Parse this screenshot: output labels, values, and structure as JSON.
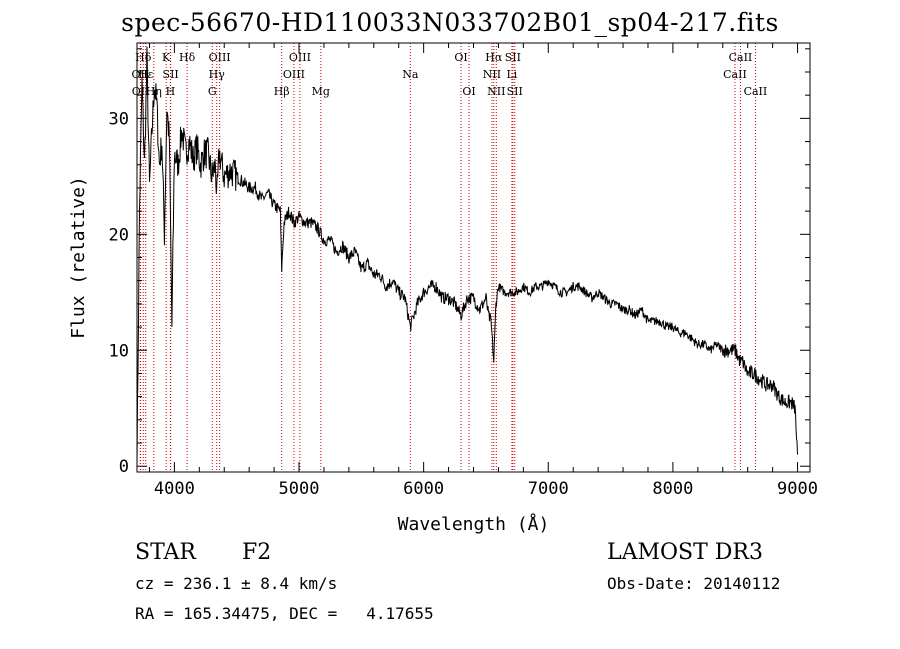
{
  "chart_data": {
    "type": "line",
    "title": "spec-56670-HD110033N033702B01_sp04-217.fits",
    "xlabel": "Wavelength (Å)",
    "ylabel": "Flux (relative)",
    "xlim": [
      3700,
      9100
    ],
    "ylim": [
      -0.5,
      36.5
    ],
    "xticks": [
      4000,
      5000,
      6000,
      7000,
      8000,
      9000
    ],
    "yticks": [
      0,
      10,
      20,
      30
    ],
    "series": [
      {
        "name": "flux",
        "x": [
          3700,
          3720,
          3740,
          3760,
          3780,
          3800,
          3820,
          3840,
          3860,
          3880,
          3900,
          3920,
          3940,
          3960,
          3980,
          4000,
          4030,
          4060,
          4090,
          4120,
          4150,
          4180,
          4210,
          4240,
          4270,
          4300,
          4330,
          4340,
          4360,
          4400,
          4450,
          4500,
          4550,
          4600,
          4650,
          4700,
          4750,
          4800,
          4850,
          4861,
          4880,
          4920,
          4960,
          5000,
          5050,
          5100,
          5150,
          5200,
          5250,
          5300,
          5350,
          5400,
          5450,
          5500,
          5550,
          5600,
          5650,
          5700,
          5750,
          5800,
          5850,
          5893,
          5950,
          6000,
          6050,
          6100,
          6150,
          6200,
          6250,
          6300,
          6350,
          6400,
          6450,
          6500,
          6520,
          6540,
          6563,
          6580,
          6600,
          6650,
          6700,
          6750,
          6800,
          6850,
          6900,
          6950,
          7000,
          7050,
          7100,
          7150,
          7200,
          7250,
          7300,
          7350,
          7400,
          7450,
          7500,
          7550,
          7600,
          7650,
          7700,
          7750,
          7800,
          7850,
          7900,
          7950,
          8000,
          8050,
          8100,
          8150,
          8200,
          8250,
          8300,
          8350,
          8400,
          8450,
          8500,
          8520,
          8542,
          8560,
          8600,
          8650,
          8700,
          8750,
          8800,
          8850,
          8900,
          8950,
          8980,
          9000
        ],
        "y": [
          0,
          22,
          33,
          26,
          35,
          24,
          29,
          33,
          31,
          26,
          28,
          20,
          31,
          28,
          12,
          27,
          26,
          29,
          27,
          28,
          26.5,
          27.5,
          26,
          27,
          27,
          25,
          26,
          23,
          27,
          25,
          25.5,
          25,
          24.5,
          24,
          24,
          23,
          23.5,
          22.5,
          22,
          17,
          21,
          22,
          21,
          21.5,
          21,
          21,
          20.5,
          19.5,
          19.5,
          18.5,
          19,
          18,
          18.5,
          17,
          17.5,
          16.5,
          16.5,
          15.5,
          16,
          15,
          14.5,
          12,
          14,
          15,
          15.5,
          15.5,
          14.5,
          14.5,
          14,
          13,
          14.5,
          14.5,
          13.5,
          14.5,
          13,
          12.5,
          9,
          14,
          15.5,
          15,
          15,
          15,
          15.5,
          15,
          15.5,
          15.5,
          16,
          15.5,
          15,
          15,
          15.5,
          15.5,
          15,
          14.5,
          15,
          14.5,
          14,
          14,
          13.5,
          13.5,
          13,
          13.5,
          12.5,
          12.5,
          12.5,
          12,
          12,
          11.5,
          11.5,
          11,
          10.5,
          10.5,
          10,
          10.5,
          10,
          10,
          10,
          9.5,
          9,
          9,
          8,
          8,
          7.5,
          7,
          7,
          6,
          5.5,
          5.5,
          5,
          1
        ]
      }
    ],
    "line_markers": [
      {
        "label": "Hδ",
        "wavelength": 3750,
        "row": 1
      },
      {
        "label": "OII",
        "wavelength": 3727,
        "row": 2
      },
      {
        "label": "OII",
        "wavelength": 3729,
        "row": 3
      },
      {
        "label": "Hε",
        "wavelength": 3770,
        "row": 2
      },
      {
        "label": "Hη",
        "wavelength": 3835,
        "row": 3
      },
      {
        "label": "K",
        "wavelength": 3934,
        "row": 1
      },
      {
        "label": "SII",
        "wavelength": 3970,
        "row": 2
      },
      {
        "label": "H",
        "wavelength": 3968,
        "row": 3
      },
      {
        "label": "Hδ",
        "wavelength": 4102,
        "row": 1
      },
      {
        "label": "OIII",
        "wavelength": 4363,
        "row": 1
      },
      {
        "label": "Hγ",
        "wavelength": 4340,
        "row": 2
      },
      {
        "label": "G",
        "wavelength": 4304,
        "row": 3
      },
      {
        "label": "Hβ",
        "wavelength": 4861,
        "row": 3
      },
      {
        "label": "OIII",
        "wavelength": 5007,
        "row": 1
      },
      {
        "label": "OIII",
        "wavelength": 4959,
        "row": 2
      },
      {
        "label": "Mg",
        "wavelength": 5175,
        "row": 3
      },
      {
        "label": "Na",
        "wavelength": 5893,
        "row": 2
      },
      {
        "label": "OI",
        "wavelength": 6300,
        "row": 1
      },
      {
        "label": "OI",
        "wavelength": 6364,
        "row": 3
      },
      {
        "label": "Hα",
        "wavelength": 6563,
        "row": 1
      },
      {
        "label": "SII",
        "wavelength": 6716,
        "row": 1
      },
      {
        "label": "NII",
        "wavelength": 6548,
        "row": 2
      },
      {
        "label": "Li",
        "wavelength": 6708,
        "row": 2
      },
      {
        "label": "NII",
        "wavelength": 6583,
        "row": 3
      },
      {
        "label": "SII",
        "wavelength": 6731,
        "row": 3
      },
      {
        "label": "CaII",
        "wavelength": 8542,
        "row": 1
      },
      {
        "label": "CaII",
        "wavelength": 8498,
        "row": 2
      },
      {
        "label": "CaII",
        "wavelength": 8662,
        "row": 3
      }
    ]
  },
  "info": {
    "class_label": "STAR",
    "subclass_label": "F2",
    "survey_label": "LAMOST DR3",
    "cz_text": "cz = 236.1 ± 8.4 km/s",
    "obs_date_text": "Obs-Date: 20140112",
    "radec_text": "RA = 165.34475, DEC =   4.17655"
  },
  "colors": {
    "spectrum": "#000000",
    "marker_line": "#cc0000",
    "background": "#ffffff"
  }
}
